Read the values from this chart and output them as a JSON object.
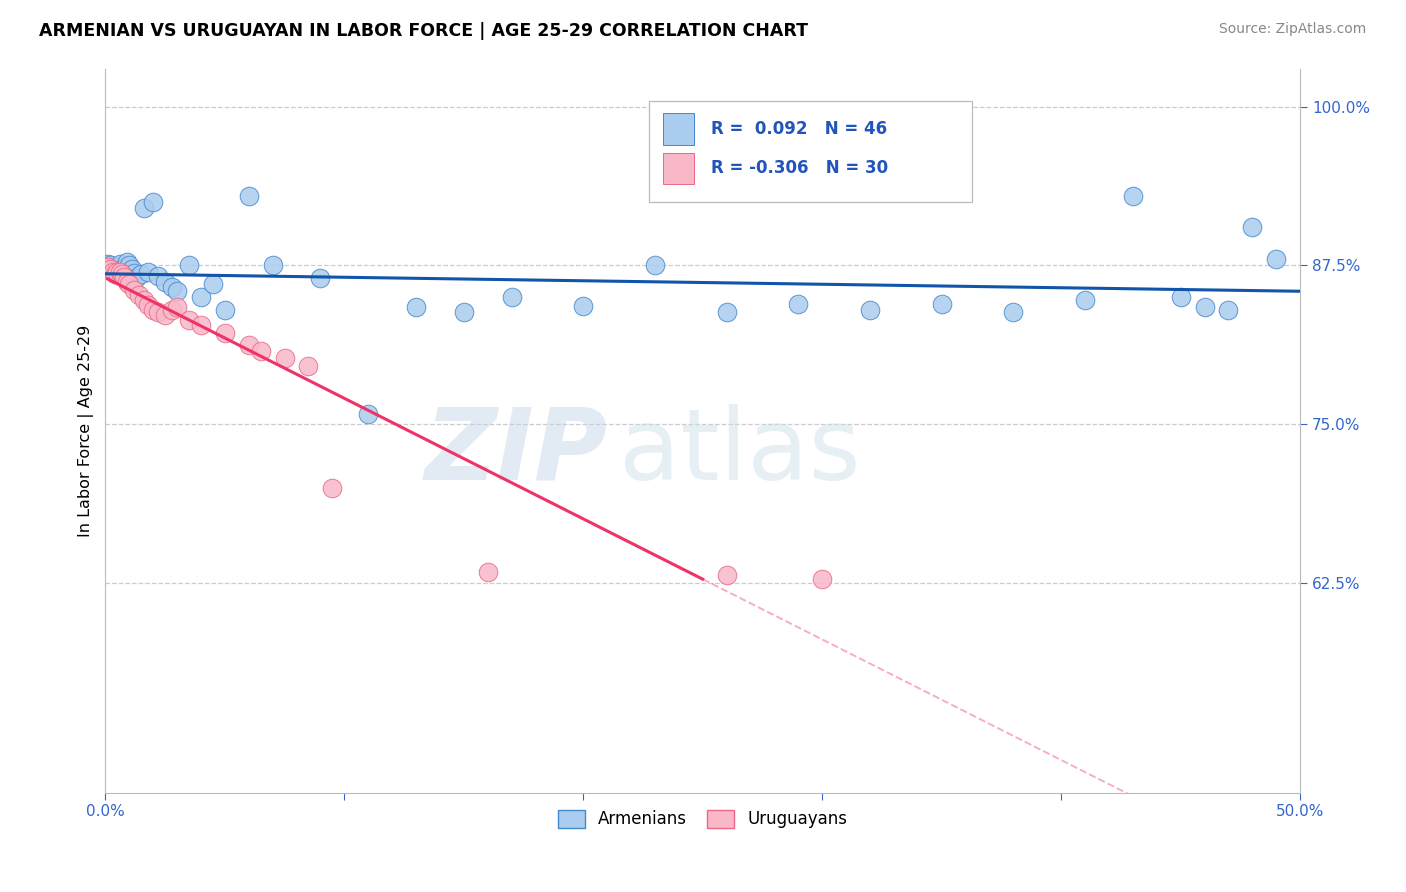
{
  "title": "ARMENIAN VS URUGUAYAN IN LABOR FORCE | AGE 25-29 CORRELATION CHART",
  "source": "Source: ZipAtlas.com",
  "ylabel": "In Labor Force | Age 25-29",
  "xlim": [
    0.0,
    0.5
  ],
  "ylim": [
    0.46,
    1.03
  ],
  "xticks": [
    0.0,
    0.1,
    0.2,
    0.3,
    0.4,
    0.5
  ],
  "xticklabels": [
    "0.0%",
    "",
    "",
    "",
    "",
    "50.0%"
  ],
  "ytick_positions": [
    0.625,
    0.75,
    0.875,
    1.0
  ],
  "ytick_labels": [
    "62.5%",
    "75.0%",
    "87.5%",
    "100.0%"
  ],
  "legend_R_armenian": "0.092",
  "legend_N_armenian": "46",
  "legend_R_uruguayan": "-0.306",
  "legend_N_uruguayan": "30",
  "blue_dot_color": "#aaccee",
  "blue_edge_color": "#4488cc",
  "blue_line_color": "#1155aa",
  "pink_dot_color": "#f8b8c8",
  "pink_edge_color": "#ee6688",
  "pink_line_color": "#ee3366",
  "armenian_x": [
    0.001,
    0.002,
    0.003,
    0.004,
    0.005,
    0.006,
    0.007,
    0.008,
    0.009,
    0.01,
    0.011,
    0.012,
    0.013,
    0.015,
    0.016,
    0.018,
    0.02,
    0.022,
    0.025,
    0.028,
    0.03,
    0.035,
    0.04,
    0.045,
    0.05,
    0.06,
    0.07,
    0.09,
    0.11,
    0.13,
    0.15,
    0.17,
    0.2,
    0.23,
    0.26,
    0.29,
    0.32,
    0.35,
    0.38,
    0.41,
    0.43,
    0.45,
    0.46,
    0.47,
    0.48,
    0.49
  ],
  "armenian_y": [
    0.876,
    0.875,
    0.87,
    0.872,
    0.874,
    0.876,
    0.872,
    0.87,
    0.878,
    0.875,
    0.872,
    0.869,
    0.865,
    0.868,
    0.92,
    0.87,
    0.925,
    0.867,
    0.862,
    0.858,
    0.855,
    0.875,
    0.85,
    0.86,
    0.84,
    0.93,
    0.875,
    0.865,
    0.758,
    0.842,
    0.838,
    0.85,
    0.843,
    0.875,
    0.838,
    0.845,
    0.84,
    0.845,
    0.838,
    0.848,
    0.93,
    0.85,
    0.842,
    0.84,
    0.905,
    0.88
  ],
  "uruguayan_x": [
    0.001,
    0.002,
    0.003,
    0.004,
    0.005,
    0.006,
    0.007,
    0.008,
    0.009,
    0.01,
    0.012,
    0.014,
    0.016,
    0.018,
    0.02,
    0.022,
    0.025,
    0.028,
    0.03,
    0.035,
    0.04,
    0.05,
    0.06,
    0.065,
    0.075,
    0.085,
    0.095,
    0.16,
    0.26,
    0.3
  ],
  "uruguayan_y": [
    0.874,
    0.872,
    0.87,
    0.868,
    0.87,
    0.87,
    0.868,
    0.866,
    0.862,
    0.86,
    0.856,
    0.852,
    0.848,
    0.844,
    0.84,
    0.838,
    0.836,
    0.84,
    0.842,
    0.832,
    0.828,
    0.822,
    0.812,
    0.808,
    0.802,
    0.796,
    0.7,
    0.634,
    0.631,
    0.628
  ],
  "pink_line_x_start": 0.001,
  "pink_line_x_solid_end": 0.25,
  "pink_line_x_dash_end": 0.5,
  "watermark_zip": "ZIP",
  "watermark_atlas": "atlas",
  "background_color": "#ffffff",
  "grid_color": "#cccccc"
}
